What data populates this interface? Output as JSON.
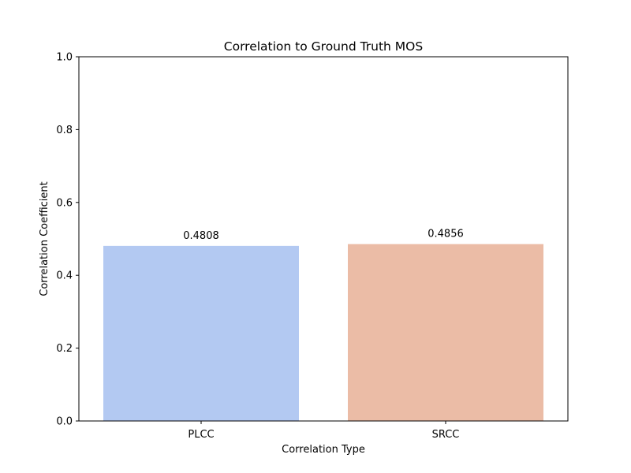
{
  "chart_data": {
    "type": "bar",
    "title": "Correlation to Ground Truth MOS",
    "xlabel": "Correlation Type",
    "ylabel": "Correlation Coefficient",
    "categories": [
      "PLCC",
      "SRCC"
    ],
    "values": [
      0.4808,
      0.4856
    ],
    "value_labels": [
      "0.4808",
      "0.4856"
    ],
    "bar_colors": [
      "#b3c9f2",
      "#ebbca6"
    ],
    "ylim": [
      0,
      1.0
    ],
    "yticks": [
      0.0,
      0.2,
      0.4,
      0.6,
      0.8,
      1.0
    ],
    "ytick_labels": [
      "0.0",
      "0.2",
      "0.4",
      "0.6",
      "0.8",
      "1.0"
    ],
    "grid": false,
    "legend": "none"
  }
}
